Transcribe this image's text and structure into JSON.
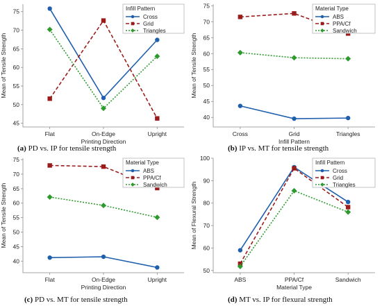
{
  "chart_data": [
    {
      "type": "line",
      "caption_label": "(a)",
      "caption_text": " PD vs. IP for tensile strength",
      "xlabel": "Printing Direction",
      "ylabel": "Mean of Tensile Strength",
      "categories": [
        "Flat",
        "On-Edge",
        "Upright"
      ],
      "ylim": [
        44,
        77
      ],
      "yticks": [
        45,
        50,
        55,
        60,
        65,
        70,
        75
      ],
      "legend_title": "Infill Pattern",
      "legend_position": "top-right",
      "series": [
        {
          "name": "Cross",
          "values": [
            75.8,
            51.8,
            67.4
          ],
          "color": "#1f5fad",
          "dash": "solid",
          "marker": "circle"
        },
        {
          "name": "Grid",
          "values": [
            51.6,
            72.6,
            46.3
          ],
          "color": "#9b1b1b",
          "dash": "dashed",
          "marker": "square"
        },
        {
          "name": "Triangles",
          "values": [
            70.2,
            49.0,
            63.0
          ],
          "color": "#2e9a2e",
          "dash": "dotted",
          "marker": "diamond"
        }
      ]
    },
    {
      "type": "line",
      "caption_label": "(b)",
      "caption_text": " IP vs. MT for tensile strength",
      "xlabel": "Infill Pattern",
      "ylabel": "Mean of Tensile Strength",
      "categories": [
        "Cross",
        "Grid",
        "Triangles"
      ],
      "ylim": [
        37,
        75.5
      ],
      "yticks": [
        40,
        45,
        50,
        55,
        60,
        65,
        70,
        75
      ],
      "legend_title": "Material Type",
      "legend_position": "top-right",
      "series": [
        {
          "name": "ABS",
          "values": [
            43.6,
            39.6,
            39.8
          ],
          "color": "#1f5fad",
          "dash": "solid",
          "marker": "circle"
        },
        {
          "name": "PPA/Cf",
          "values": [
            71.5,
            72.6,
            66.3
          ],
          "color": "#9b1b1b",
          "dash": "dashed",
          "marker": "square"
        },
        {
          "name": "Sandwich",
          "values": [
            60.3,
            58.7,
            58.4
          ],
          "color": "#2e9a2e",
          "dash": "dotted",
          "marker": "diamond"
        }
      ]
    },
    {
      "type": "line",
      "caption_label": "(c)",
      "caption_text": " PD vs. MT for tensile strength",
      "xlabel": "Printing Direction",
      "ylabel": "Mean of Tensile Strength",
      "categories": [
        "Flat",
        "On-Edge",
        "Upright"
      ],
      "ylim": [
        36,
        75.5
      ],
      "yticks": [
        40,
        45,
        50,
        55,
        60,
        65,
        70,
        75
      ],
      "legend_title": "Material Type",
      "legend_position": "top-right",
      "series": [
        {
          "name": "ABS",
          "values": [
            41.2,
            41.5,
            37.8
          ],
          "color": "#1f5fad",
          "dash": "solid",
          "marker": "circle"
        },
        {
          "name": "PPA/Cf",
          "values": [
            73.0,
            72.6,
            65.2
          ],
          "color": "#9b1b1b",
          "dash": "dashed",
          "marker": "square"
        },
        {
          "name": "Sandwich",
          "values": [
            62.1,
            59.2,
            55.1
          ],
          "color": "#2e9a2e",
          "dash": "dotted",
          "marker": "diamond"
        }
      ]
    },
    {
      "type": "line",
      "caption_label": "(d)",
      "caption_text": " MT vs. IP for flexural strength",
      "xlabel": "Material Type",
      "ylabel": "Mean of Flexural Strength",
      "categories": [
        "ABS",
        "PPA/Cf",
        "Sandwich"
      ],
      "ylim": [
        49,
        100
      ],
      "yticks": [
        50,
        60,
        70,
        80,
        90,
        100
      ],
      "legend_title": "Infill Pattern",
      "legend_position": "top-right",
      "series": [
        {
          "name": "Cross",
          "values": [
            59.0,
            96.0,
            80.5
          ],
          "color": "#1f5fad",
          "dash": "solid",
          "marker": "circle"
        },
        {
          "name": "Grid",
          "values": [
            53.0,
            95.5,
            78.2
          ],
          "color": "#9b1b1b",
          "dash": "dashed",
          "marker": "square"
        },
        {
          "name": "Triangles",
          "values": [
            51.8,
            85.5,
            76.0
          ],
          "color": "#2e9a2e",
          "dash": "dotted",
          "marker": "diamond"
        }
      ]
    }
  ]
}
